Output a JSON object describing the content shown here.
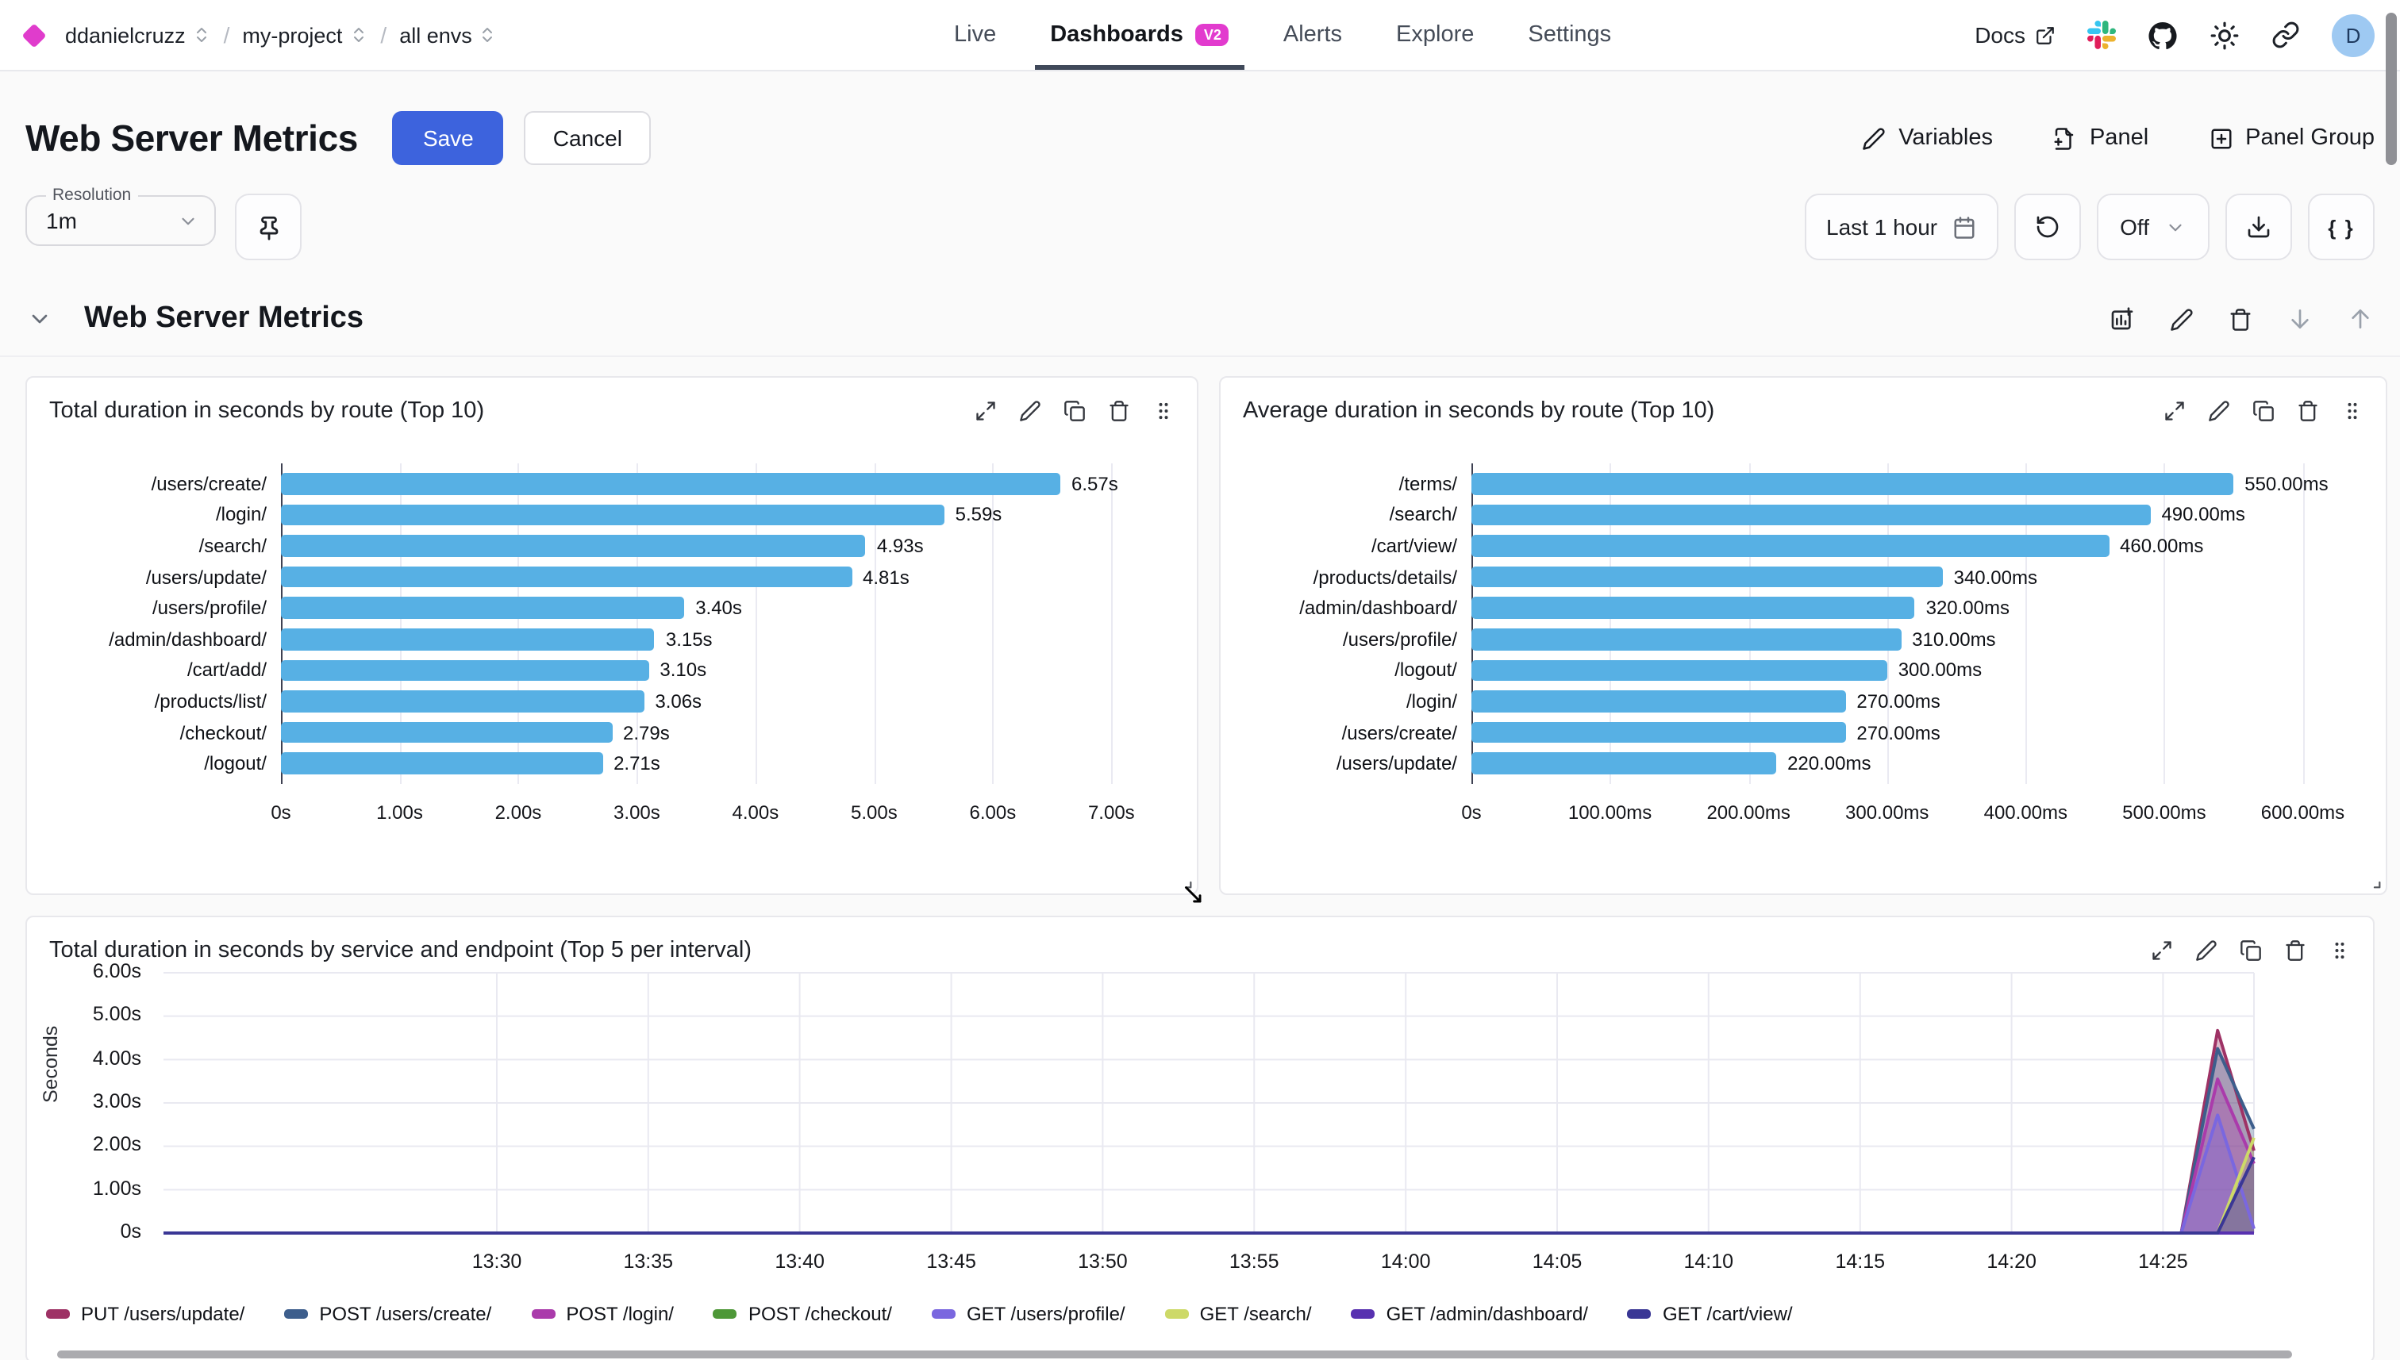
{
  "nav": {
    "org": "ddanielcruzz",
    "project": "my-project",
    "env": "all envs",
    "tabs": [
      {
        "label": "Live",
        "active": false
      },
      {
        "label": "Dashboards",
        "badge": "V2",
        "active": true
      },
      {
        "label": "Alerts",
        "active": false
      },
      {
        "label": "Explore",
        "active": false
      },
      {
        "label": "Settings",
        "active": false
      }
    ],
    "docs_label": "Docs",
    "avatar_initial": "D",
    "brand_color": "#e03ccc"
  },
  "header": {
    "title": "Web Server Metrics",
    "save_label": "Save",
    "cancel_label": "Cancel",
    "variables_label": "Variables",
    "panel_label": "Panel",
    "panel_group_label": "Panel Group",
    "save_color": "#3d63dd"
  },
  "toolbar": {
    "resolution_label": "Resolution",
    "resolution_value": "1m",
    "time_range_label": "Last 1 hour",
    "refresh_interval_label": "Off",
    "braces_label": "{ }"
  },
  "section": {
    "title": "Web Server Metrics"
  },
  "chart_data": [
    {
      "type": "bar",
      "orientation": "horizontal",
      "title": "Total duration in seconds by route (Top 10)",
      "categories": [
        "/users/create/",
        "/login/",
        "/search/",
        "/users/update/",
        "/users/profile/",
        "/admin/dashboard/",
        "/cart/add/",
        "/products/list/",
        "/checkout/",
        "/logout/"
      ],
      "values": [
        6.57,
        5.59,
        4.93,
        4.81,
        3.4,
        3.15,
        3.1,
        3.06,
        2.79,
        2.71
      ],
      "value_labels": [
        "6.57s",
        "5.59s",
        "4.93s",
        "4.81s",
        "3.40s",
        "3.15s",
        "3.10s",
        "3.06s",
        "2.79s",
        "2.71s"
      ],
      "xlim": [
        0,
        7.64
      ],
      "tick_values": [
        0,
        1,
        2,
        3,
        4,
        5,
        6,
        7
      ],
      "tick_labels": [
        "0s",
        "1.00s",
        "2.00s",
        "3.00s",
        "4.00s",
        "5.00s",
        "6.00s",
        "7.00s"
      ],
      "bar_color": "#57b0e4",
      "grid": true
    },
    {
      "type": "bar",
      "orientation": "horizontal",
      "title": "Average duration in seconds by route (Top 10)",
      "categories": [
        "/terms/",
        "/search/",
        "/cart/view/",
        "/products/details/",
        "/admin/dashboard/",
        "/users/profile/",
        "/logout/",
        "/login/",
        "/users/create/",
        "/users/update/"
      ],
      "values": [
        550,
        490,
        460,
        340,
        320,
        310,
        300,
        270,
        270,
        220
      ],
      "value_labels": [
        "550.00ms",
        "490.00ms",
        "460.00ms",
        "340.00ms",
        "320.00ms",
        "310.00ms",
        "300.00ms",
        "270.00ms",
        "270.00ms",
        "220.00ms"
      ],
      "xlim": [
        0,
        653
      ],
      "tick_values": [
        0,
        100,
        200,
        300,
        400,
        500,
        600
      ],
      "tick_labels": [
        "0s",
        "100.00ms",
        "200.00ms",
        "300.00ms",
        "400.00ms",
        "500.00ms",
        "600.00ms"
      ],
      "bar_color": "#57b0e4",
      "grid": true
    },
    {
      "type": "area",
      "title": "Total duration in seconds by service and endpoint (Top 5 per interval)",
      "ylabel": "Seconds",
      "ylim": [
        0,
        6
      ],
      "ytick_values": [
        0,
        1,
        2,
        3,
        4,
        5,
        6
      ],
      "ytick_labels": [
        "0s",
        "1.00s",
        "2.00s",
        "3.00s",
        "4.00s",
        "5.00s",
        "6.00s"
      ],
      "xtick_labels": [
        "13:30",
        "13:35",
        "13:40",
        "13:45",
        "13:50",
        "13:55",
        "14:00",
        "14:05",
        "14:10",
        "14:15",
        "14:20",
        "14:25"
      ],
      "xtick_minutes": [
        0,
        5,
        10,
        15,
        20,
        25,
        30,
        35,
        40,
        45,
        50,
        55
      ],
      "x_domain_minutes": [
        -11,
        58
      ],
      "grid": true,
      "legend_position": "bottom",
      "series": [
        {
          "name": "PUT /users/update/",
          "color": "#9e3265",
          "points": [
            [
              -11,
              0
            ],
            [
              55.6,
              0
            ],
            [
              56.8,
              4.67
            ],
            [
              58,
              1.9
            ]
          ]
        },
        {
          "name": "POST /users/create/",
          "color": "#3d5e8c",
          "points": [
            [
              -11,
              0
            ],
            [
              55.6,
              0
            ],
            [
              56.8,
              4.25
            ],
            [
              58,
              2.4
            ]
          ]
        },
        {
          "name": "POST /login/",
          "color": "#aa3bab",
          "points": [
            [
              -11,
              0
            ],
            [
              55.6,
              0
            ],
            [
              56.8,
              3.55
            ],
            [
              58,
              1.6
            ]
          ]
        },
        {
          "name": "POST /checkout/",
          "color": "#4e9838",
          "points": [
            [
              -11,
              0
            ],
            [
              58,
              0
            ]
          ]
        },
        {
          "name": "GET /users/profile/",
          "color": "#7a67df",
          "points": [
            [
              -11,
              0
            ],
            [
              55.6,
              0
            ],
            [
              56.8,
              2.72
            ],
            [
              58,
              0.1
            ]
          ]
        },
        {
          "name": "GET /search/",
          "color": "#cdd968",
          "points": [
            [
              -11,
              0
            ],
            [
              56.8,
              0
            ],
            [
              58,
              2.2
            ]
          ]
        },
        {
          "name": "GET /admin/dashboard/",
          "color": "#5831b0",
          "points": [
            [
              -11,
              0
            ],
            [
              58,
              0
            ]
          ]
        },
        {
          "name": "GET /cart/view/",
          "color": "#3a3795",
          "points": [
            [
              -11,
              0
            ],
            [
              56.8,
              0
            ],
            [
              58,
              1.75
            ]
          ]
        }
      ]
    }
  ]
}
